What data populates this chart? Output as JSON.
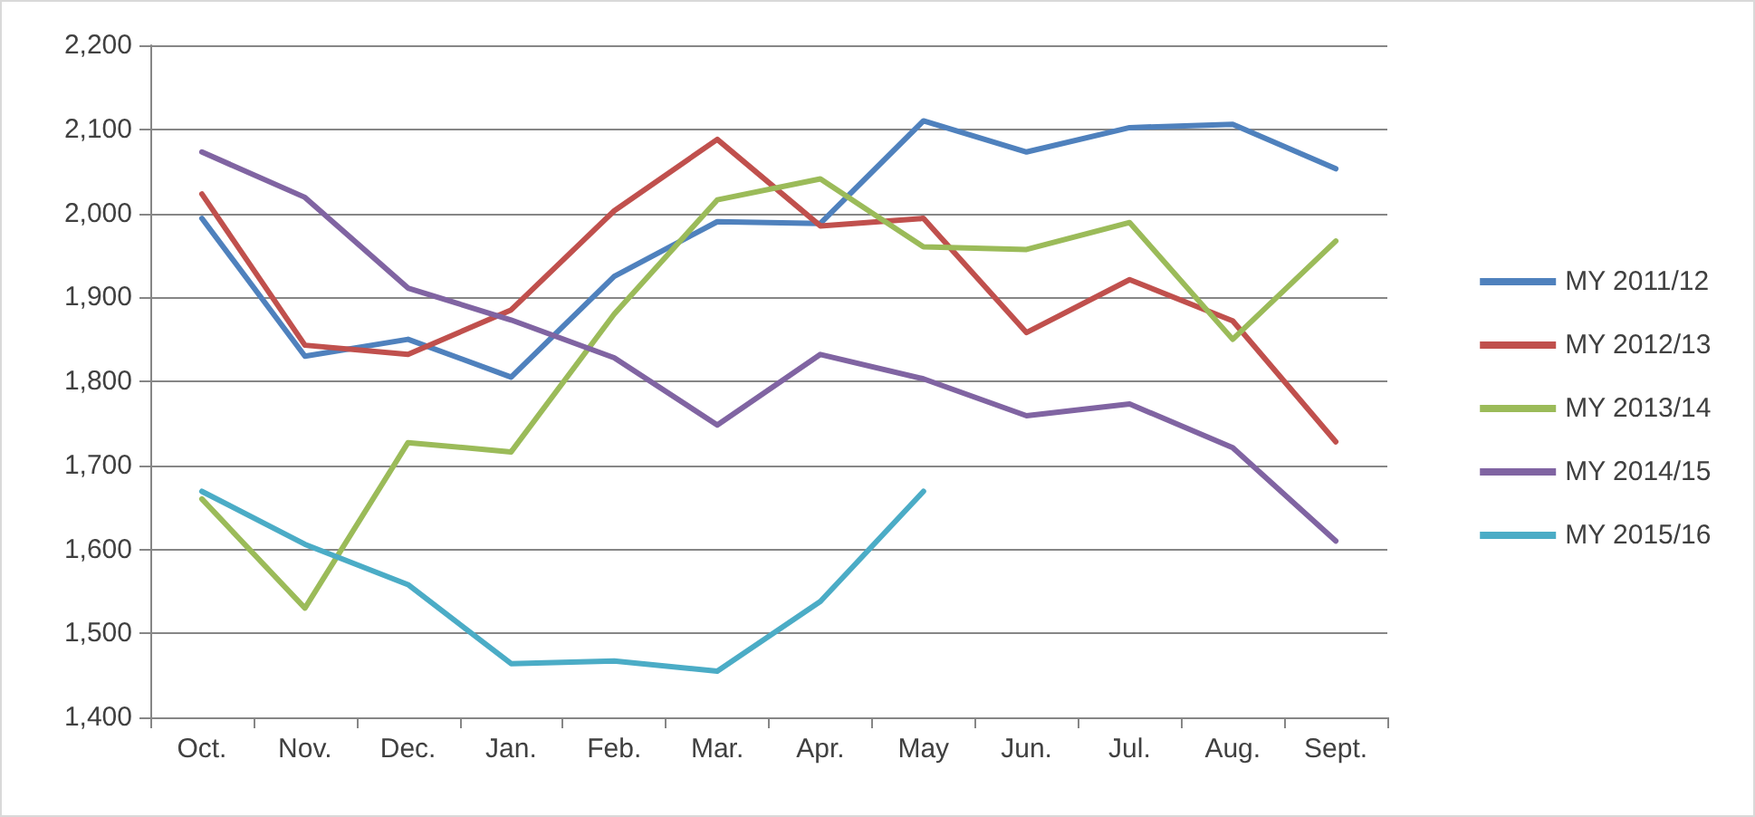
{
  "chart_data": {
    "type": "line",
    "categories": [
      "Oct.",
      "Nov.",
      "Dec.",
      "Jan.",
      "Feb.",
      "Mar.",
      "Apr.",
      "May",
      "Jun.",
      "Jul.",
      "Aug.",
      "Sept."
    ],
    "series": [
      {
        "name": "MY 2011/12",
        "color": "#4f81bd",
        "values": [
          1994,
          1830,
          1850,
          1805,
          1925,
          1990,
          1988,
          2110,
          2073,
          2102,
          2106,
          2053
        ]
      },
      {
        "name": "MY 2012/13",
        "color": "#c0504d",
        "values": [
          2023,
          1843,
          1832,
          1885,
          2003,
          2088,
          1985,
          1994,
          1858,
          1921,
          1872,
          1728
        ]
      },
      {
        "name": "MY 2013/14",
        "color": "#9bbb59",
        "values": [
          1660,
          1530,
          1727,
          1716,
          1880,
          2016,
          2041,
          1960,
          1957,
          1989,
          1850,
          1967
        ]
      },
      {
        "name": "MY 2014/15",
        "color": "#8064a2",
        "values": [
          2073,
          2019,
          1911,
          1873,
          1828,
          1748,
          1832,
          1803,
          1759,
          1773,
          1721,
          1610
        ]
      },
      {
        "name": "MY 2015/16",
        "color": "#4bacc6",
        "values": [
          1669,
          1606,
          1558,
          1464,
          1467,
          1455,
          1538,
          1669,
          null,
          null,
          null,
          null
        ]
      }
    ],
    "ylim": [
      1400,
      2200
    ],
    "yticks": [
      {
        "value": 1400,
        "label": "1,400"
      },
      {
        "value": 1500,
        "label": "1,500"
      },
      {
        "value": 1600,
        "label": "1,600"
      },
      {
        "value": 1700,
        "label": "1,700"
      },
      {
        "value": 1800,
        "label": "1,800"
      },
      {
        "value": 1900,
        "label": "1,900"
      },
      {
        "value": 2000,
        "label": "2,000"
      },
      {
        "value": 2100,
        "label": "2,100"
      },
      {
        "value": 2200,
        "label": "2,200"
      }
    ],
    "grid": "y",
    "legend": "right",
    "marker": "none",
    "line_style": "solid"
  }
}
